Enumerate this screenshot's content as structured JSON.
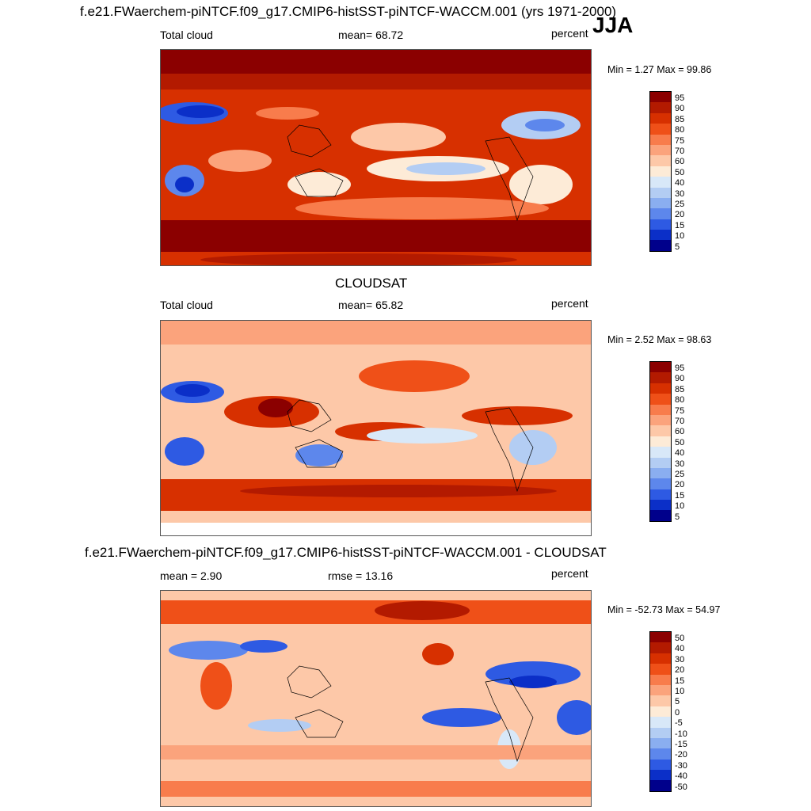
{
  "chart_data": [
    {
      "type": "heatmap",
      "title": "f.e21.FWaerchem-piNTCF.f09_g17.CMIP6-histSST-piNTCF-WACCM.001 (yrs 1971-2000)",
      "season": "JJA",
      "left_label": "Total cloud",
      "center_label": "mean=  68.72",
      "right_label": "percent",
      "minmax": "Min =   1.27 Max =  99.86",
      "variable": "Total cloud",
      "units": "percent",
      "mean": 68.72,
      "min": 1.27,
      "max": 99.86,
      "colorbar_levels": [
        "95",
        "90",
        "85",
        "80",
        "75",
        "70",
        "60",
        "50",
        "40",
        "30",
        "25",
        "20",
        "15",
        "10",
        "5"
      ]
    },
    {
      "type": "heatmap",
      "title": "CLOUDSAT",
      "left_label": "Total cloud",
      "center_label": "mean=  65.82",
      "right_label": "percent",
      "minmax": "Min =   2.52 Max =  98.63",
      "variable": "Total cloud",
      "units": "percent",
      "mean": 65.82,
      "min": 2.52,
      "max": 98.63,
      "colorbar_levels": [
        "95",
        "90",
        "85",
        "80",
        "75",
        "70",
        "60",
        "50",
        "40",
        "30",
        "25",
        "20",
        "15",
        "10",
        "5"
      ]
    },
    {
      "type": "heatmap",
      "title": "f.e21.FWaerchem-piNTCF.f09_g17.CMIP6-histSST-piNTCF-WACCM.001 - CLOUDSAT",
      "left_label": "mean =   2.90",
      "center_label": "rmse =  13.16",
      "right_label": "percent",
      "minmax": "Min = -52.73 Max =  54.97",
      "units": "percent",
      "mean": 2.9,
      "rmse": 13.16,
      "min": -52.73,
      "max": 54.97,
      "colorbar_levels": [
        "50",
        "40",
        "30",
        "20",
        "15",
        "10",
        "5",
        "0",
        "-5",
        "-10",
        "-15",
        "-20",
        "-30",
        "-40",
        "-50"
      ]
    }
  ],
  "colors": {
    "palette": [
      "#8b0000",
      "#b31a00",
      "#d73000",
      "#ef5018",
      "#f87c4c",
      "#fba37c",
      "#fdc8a8",
      "#fdebd7",
      "#d8e8f8",
      "#b3cdf3",
      "#8aaef0",
      "#5d87ec",
      "#2e5ae3",
      "#0b2fc8",
      "#00008b"
    ],
    "land_line": "#000000",
    "frame": "#555555"
  }
}
